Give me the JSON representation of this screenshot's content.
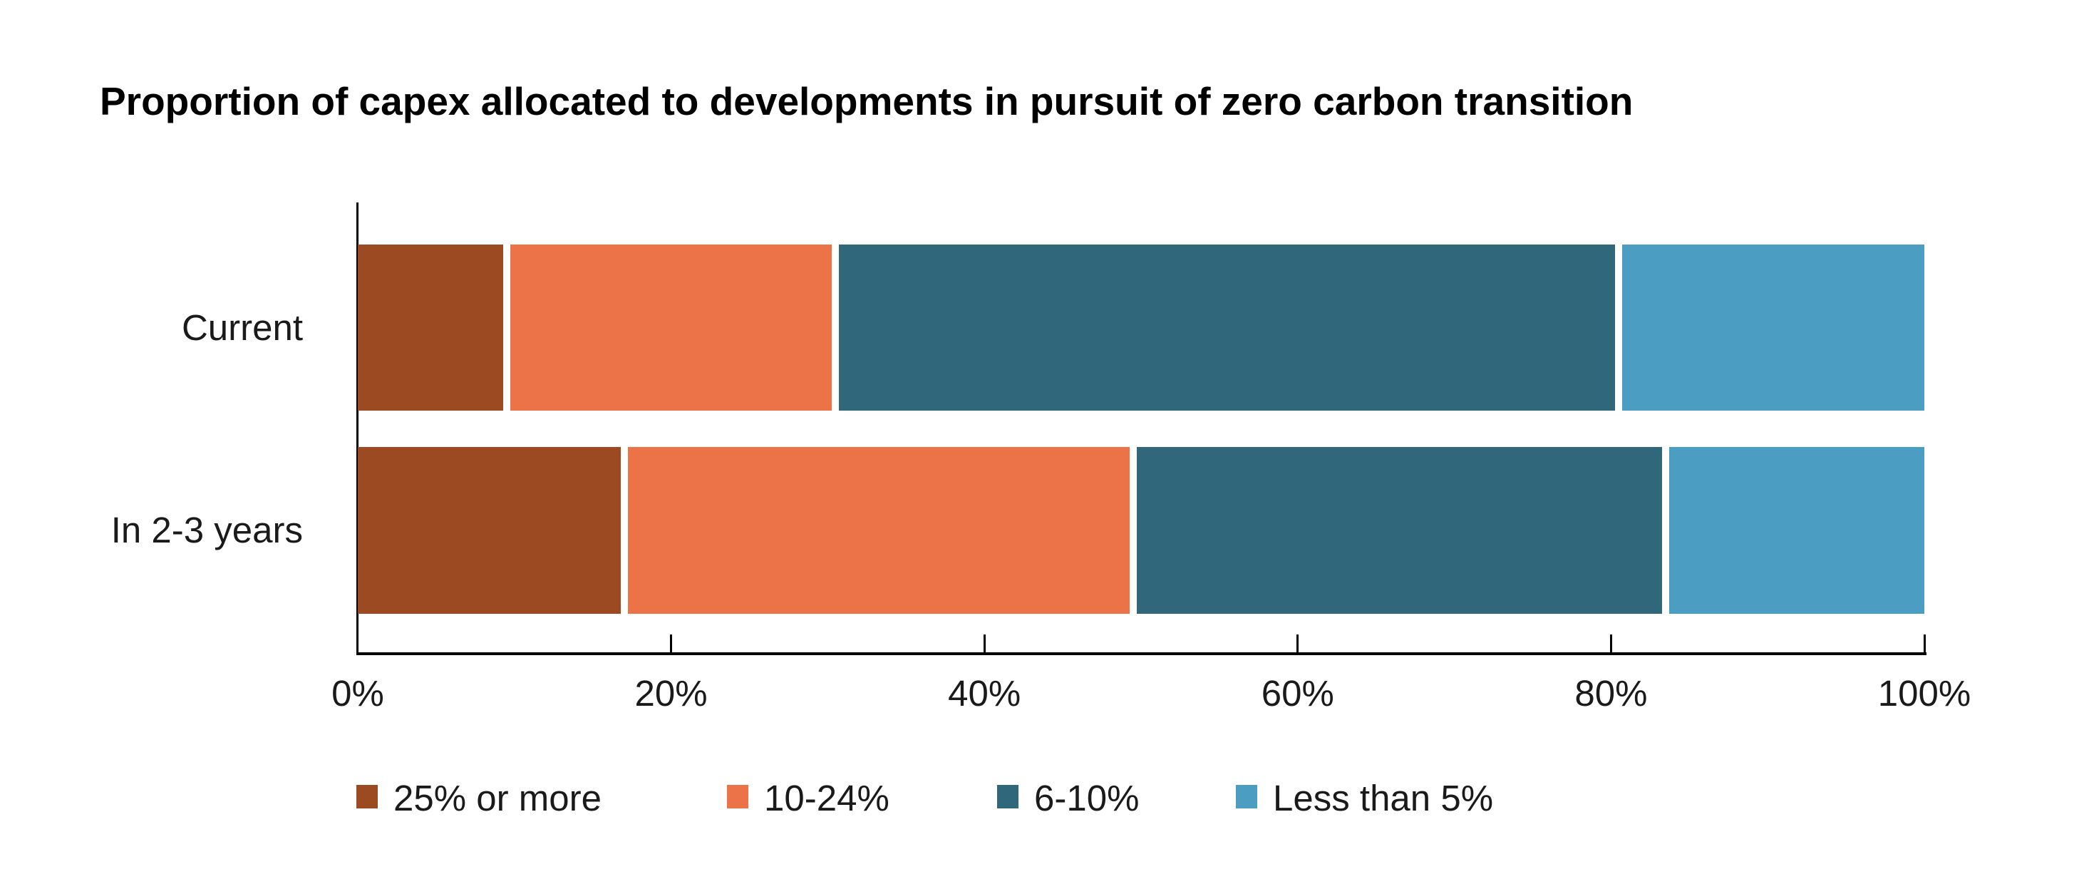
{
  "title": "Proportion of capex allocated to developments in pursuit of zero carbon transition",
  "colors": {
    "series_25_or_more": "#9B4A22",
    "series_10_24": "#EB7347",
    "series_6_10": "#31677A",
    "series_less_5": "#4B9DC1",
    "axis": "#000000",
    "text": "#1A1A1A",
    "background": "#FFFFFF"
  },
  "chart_data": {
    "type": "bar",
    "orientation": "horizontal",
    "stacked": true,
    "title": "Proportion of capex allocated to developments in pursuit of zero carbon transition",
    "categories": [
      "Current",
      "In 2-3 years"
    ],
    "series": [
      {
        "name": "25% or more",
        "color": "#9B4A22",
        "values": [
          9.5,
          17
        ]
      },
      {
        "name": "10-24%",
        "color": "#EB7347",
        "values": [
          21,
          32.5
        ]
      },
      {
        "name": "6-10%",
        "color": "#31677A",
        "values": [
          50,
          34
        ]
      },
      {
        "name": "Less than 5%",
        "color": "#4B9DC1",
        "values": [
          19.5,
          16.5
        ]
      }
    ],
    "x_axis": {
      "min": 0,
      "max": 100,
      "tick_values": [
        0,
        20,
        40,
        60,
        80,
        100
      ],
      "tick_labels": [
        "0%",
        "20%",
        "40%",
        "60%",
        "80%",
        "100%"
      ]
    },
    "ylabel": "",
    "xlabel": "",
    "grid": false,
    "legend_position": "bottom"
  }
}
